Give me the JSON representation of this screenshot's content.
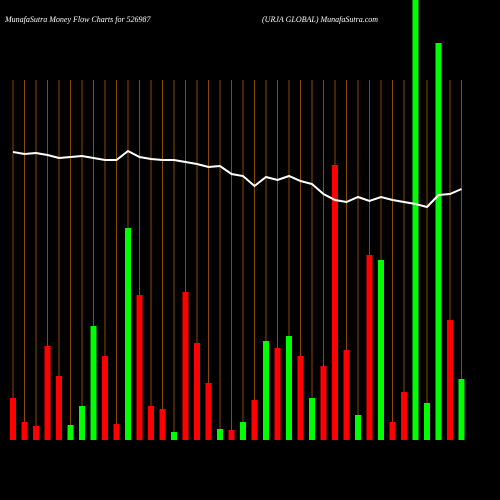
{
  "chart_data": {
    "type": "bar",
    "title": "MunafaSutra  Money Flow  Charts for 526987",
    "subtitle": "(URJA GLOBAL) MunafaSutra.com",
    "ylim": [
      0,
      440
    ],
    "grid": true,
    "series": [
      {
        "values": [
          42,
          18,
          14,
          94,
          64,
          15,
          34,
          114,
          84,
          16,
          212,
          145,
          34,
          31,
          8,
          148,
          97,
          57,
          11,
          10,
          18,
          40,
          99,
          92,
          104,
          84,
          42,
          74,
          275,
          90,
          25,
          185,
          180,
          18,
          48,
          440,
          37,
          397,
          120,
          61
        ],
        "colors": [
          "#ff0000",
          "#ff0000",
          "#ff0000",
          "#ff0000",
          "#ff0000",
          "#00ff00",
          "#00ff00",
          "#00ff00",
          "#ff0000",
          "#ff0000",
          "#00ff00",
          "#ff0000",
          "#ff0000",
          "#ff0000",
          "#00ff00",
          "#ff0000",
          "#ff0000",
          "#ff0000",
          "#00ff00",
          "#ff0000",
          "#00ff00",
          "#ff0000",
          "#00ff00",
          "#ff0000",
          "#00ff00",
          "#ff0000",
          "#00ff00",
          "#ff0000",
          "#ff0000",
          "#ff0000",
          "#00ff00",
          "#ff0000",
          "#00ff00",
          "#ff0000",
          "#ff0000",
          "#00ff00",
          "#00ff00",
          "#00ff00",
          "#ff0000",
          "#00ff00"
        ]
      }
    ],
    "line": {
      "color": "#ffffff",
      "values": [
        288,
        286,
        287,
        285,
        282,
        283,
        284,
        282,
        280,
        280,
        289,
        283,
        281,
        280,
        280,
        278,
        276,
        273,
        274,
        266,
        264,
        254,
        263,
        260,
        264,
        259,
        256,
        246,
        240,
        238,
        243,
        239,
        243,
        240,
        238,
        236,
        233,
        245,
        246,
        251
      ]
    }
  }
}
